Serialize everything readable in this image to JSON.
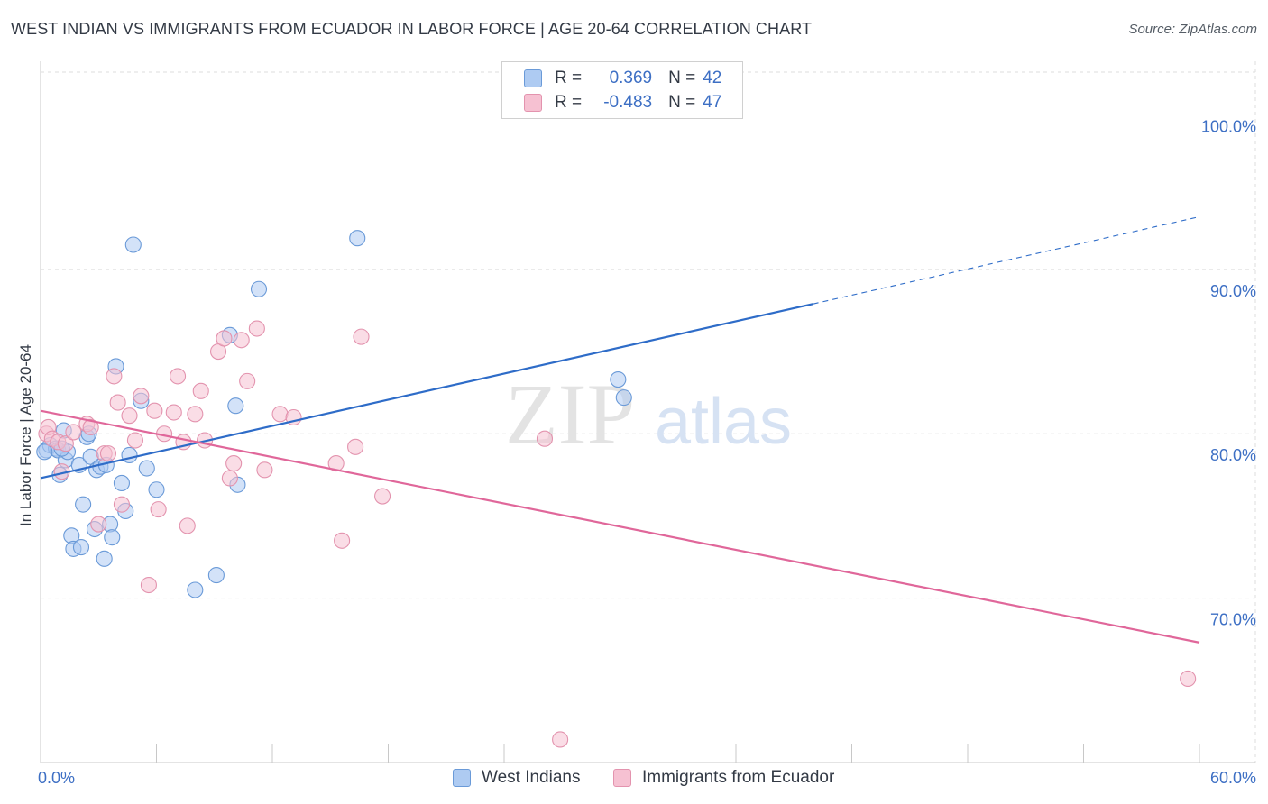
{
  "title": "WEST INDIAN VS IMMIGRANTS FROM ECUADOR IN LABOR FORCE | AGE 20-64 CORRELATION CHART",
  "source": "Source: ZipAtlas.com",
  "watermark": {
    "zip": "ZIP",
    "atlas": "atlas"
  },
  "legend": {
    "rows": [
      {
        "r_label": "R =",
        "r_value": "0.369",
        "n_label": "N =",
        "n_value": "42"
      },
      {
        "r_label": "R =",
        "r_value": "-0.483",
        "n_label": "N =",
        "n_value": "47"
      }
    ]
  },
  "colors": {
    "blue_fill": "#aecbf2",
    "blue_stroke": "#6a9ad8",
    "blue_line": "#2e6cc8",
    "pink_fill": "#f6c1d2",
    "pink_stroke": "#e393ae",
    "pink_line": "#e0679a",
    "axis_text": "#3d6fc4",
    "grid": "#dddddd"
  },
  "chart_data": {
    "type": "scatter",
    "title": "WEST INDIAN VS IMMIGRANTS FROM ECUADOR IN LABOR FORCE | AGE 20-64 CORRELATION CHART",
    "xlabel": "",
    "ylabel": "In Labor Force | Age 20-64",
    "xlim": [
      0,
      60
    ],
    "ylim": [
      60,
      102
    ],
    "x_tick_labels": [
      "0.0%",
      "60.0%"
    ],
    "y_ticks": [
      70,
      80,
      90,
      100
    ],
    "y_tick_labels": [
      "70.0%",
      "80.0%",
      "90.0%",
      "100.0%"
    ],
    "grid": true,
    "legend_placement": "bottom",
    "series": [
      {
        "name": "West Indians",
        "color": "#aecbf2",
        "points": [
          [
            0.3,
            79.0
          ],
          [
            0.5,
            79.3
          ],
          [
            0.8,
            79.1
          ],
          [
            0.9,
            79.0
          ],
          [
            1.0,
            77.5
          ],
          [
            1.2,
            80.2
          ],
          [
            1.3,
            78.4
          ],
          [
            1.4,
            78.9
          ],
          [
            1.6,
            73.8
          ],
          [
            1.7,
            73.0
          ],
          [
            2.0,
            78.1
          ],
          [
            2.1,
            73.1
          ],
          [
            2.2,
            75.7
          ],
          [
            2.4,
            79.8
          ],
          [
            2.5,
            80.0
          ],
          [
            2.6,
            78.6
          ],
          [
            2.8,
            74.2
          ],
          [
            2.9,
            77.8
          ],
          [
            3.1,
            78.0
          ],
          [
            3.3,
            72.4
          ],
          [
            3.4,
            78.1
          ],
          [
            3.6,
            74.5
          ],
          [
            3.7,
            73.7
          ],
          [
            3.9,
            84.1
          ],
          [
            4.2,
            77.0
          ],
          [
            4.4,
            75.3
          ],
          [
            4.6,
            78.7
          ],
          [
            4.8,
            91.5
          ],
          [
            5.2,
            82.0
          ],
          [
            5.5,
            77.9
          ],
          [
            6.0,
            76.6
          ],
          [
            8.0,
            70.5
          ],
          [
            9.1,
            71.4
          ],
          [
            9.8,
            86.0
          ],
          [
            10.1,
            81.7
          ],
          [
            10.2,
            76.9
          ],
          [
            11.3,
            88.8
          ],
          [
            16.4,
            91.9
          ],
          [
            29.9,
            83.3
          ],
          [
            30.2,
            82.2
          ],
          [
            0.2,
            78.9
          ],
          [
            1.1,
            79.1
          ]
        ]
      },
      {
        "name": "Immigrants from Ecuador",
        "color": "#f6c1d2",
        "points": [
          [
            0.3,
            80.0
          ],
          [
            0.4,
            80.4
          ],
          [
            0.6,
            79.7
          ],
          [
            0.9,
            79.5
          ],
          [
            1.1,
            77.7
          ],
          [
            1.3,
            79.4
          ],
          [
            1.7,
            80.1
          ],
          [
            2.4,
            80.6
          ],
          [
            2.6,
            80.4
          ],
          [
            3.3,
            78.8
          ],
          [
            3.5,
            78.8
          ],
          [
            3.8,
            83.5
          ],
          [
            4.0,
            81.9
          ],
          [
            4.2,
            75.7
          ],
          [
            4.6,
            81.1
          ],
          [
            4.9,
            79.6
          ],
          [
            5.2,
            82.3
          ],
          [
            5.6,
            70.8
          ],
          [
            5.9,
            81.4
          ],
          [
            6.1,
            75.4
          ],
          [
            6.4,
            80.0
          ],
          [
            6.9,
            81.3
          ],
          [
            7.1,
            83.5
          ],
          [
            7.4,
            79.5
          ],
          [
            7.6,
            74.4
          ],
          [
            8.0,
            81.2
          ],
          [
            8.3,
            82.6
          ],
          [
            8.5,
            79.6
          ],
          [
            9.2,
            85.0
          ],
          [
            9.5,
            85.8
          ],
          [
            9.8,
            77.3
          ],
          [
            10.0,
            78.2
          ],
          [
            10.4,
            85.7
          ],
          [
            10.7,
            83.2
          ],
          [
            11.2,
            86.4
          ],
          [
            11.6,
            77.8
          ],
          [
            12.4,
            81.2
          ],
          [
            13.1,
            81.0
          ],
          [
            15.3,
            78.2
          ],
          [
            15.6,
            73.5
          ],
          [
            16.3,
            79.2
          ],
          [
            16.6,
            85.9
          ],
          [
            17.7,
            76.2
          ],
          [
            26.1,
            79.7
          ],
          [
            26.9,
            61.4
          ],
          [
            59.4,
            65.1
          ],
          [
            3.0,
            74.5
          ]
        ]
      }
    ],
    "trend_lines": [
      {
        "series": "West Indians",
        "x": [
          0,
          40
        ],
        "y": [
          77.3,
          87.9
        ],
        "dashed_extension": {
          "x": [
            40,
            60
          ],
          "y": [
            87.9,
            93.2
          ]
        }
      },
      {
        "series": "Immigrants from Ecuador",
        "x": [
          0,
          60
        ],
        "y": [
          81.4,
          67.3
        ]
      }
    ]
  }
}
